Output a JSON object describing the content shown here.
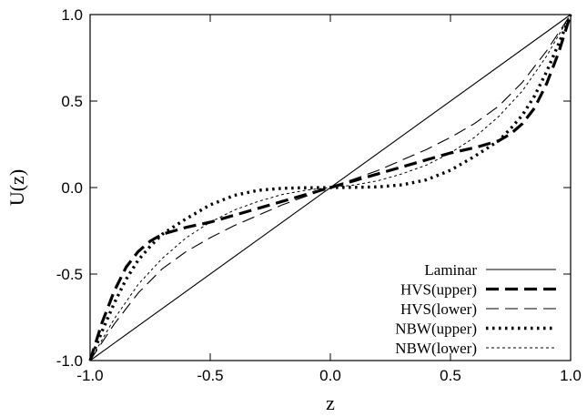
{
  "chart_data": {
    "type": "line",
    "title": "",
    "xlabel": "z",
    "ylabel": "U(z)",
    "xlim": [
      -1.0,
      1.0
    ],
    "ylim": [
      -1.0,
      1.0
    ],
    "x_ticks": [
      "-1.0",
      "-0.5",
      "0.0",
      "0.5",
      "1.0"
    ],
    "y_ticks": [
      "-1.0",
      "-0.5",
      "0.0",
      "0.5",
      "1.0"
    ],
    "grid": false,
    "legend_position": "bottom-right",
    "series": [
      {
        "name": "Laminar",
        "style": "solid-thin",
        "x": [
          -1.0,
          1.0
        ],
        "y": [
          -1.0,
          1.0
        ]
      },
      {
        "name": "HVS(upper)",
        "style": "dashed-thick",
        "x": [
          -1.0,
          -0.95,
          -0.9,
          -0.85,
          -0.8,
          -0.75,
          -0.7,
          -0.65,
          -0.6,
          -0.5,
          -0.4,
          -0.3,
          -0.2,
          -0.1,
          0.0,
          0.1,
          0.2,
          0.3,
          0.4,
          0.5,
          0.6,
          0.65,
          0.7,
          0.75,
          0.8,
          0.85,
          0.9,
          0.95,
          1.0
        ],
        "y": [
          -1.0,
          -0.78,
          -0.6,
          -0.46,
          -0.37,
          -0.31,
          -0.27,
          -0.25,
          -0.23,
          -0.2,
          -0.16,
          -0.12,
          -0.08,
          -0.04,
          0.0,
          0.04,
          0.08,
          0.12,
          0.16,
          0.2,
          0.23,
          0.25,
          0.27,
          0.31,
          0.37,
          0.46,
          0.6,
          0.78,
          1.0
        ]
      },
      {
        "name": "HVS(lower)",
        "style": "dashed-thin",
        "x": [
          -1.0,
          -0.9,
          -0.8,
          -0.7,
          -0.6,
          -0.5,
          -0.4,
          -0.3,
          -0.2,
          -0.1,
          0.0,
          0.1,
          0.2,
          0.3,
          0.4,
          0.5,
          0.6,
          0.7,
          0.8,
          0.9,
          1.0
        ],
        "y": [
          -1.0,
          -0.79,
          -0.61,
          -0.47,
          -0.37,
          -0.29,
          -0.22,
          -0.16,
          -0.1,
          -0.05,
          0.0,
          0.05,
          0.1,
          0.16,
          0.22,
          0.29,
          0.37,
          0.47,
          0.61,
          0.79,
          1.0
        ]
      },
      {
        "name": "NBW(upper)",
        "style": "dotted-thick",
        "x": [
          -1.0,
          -0.95,
          -0.9,
          -0.85,
          -0.8,
          -0.75,
          -0.7,
          -0.6,
          -0.5,
          -0.4,
          -0.3,
          -0.2,
          -0.1,
          0.0,
          0.1,
          0.2,
          0.3,
          0.4,
          0.5,
          0.6,
          0.7,
          0.75,
          0.8,
          0.85,
          0.9,
          0.95,
          1.0
        ],
        "y": [
          -1.0,
          -0.83,
          -0.67,
          -0.53,
          -0.42,
          -0.34,
          -0.27,
          -0.18,
          -0.1,
          -0.045,
          -0.016,
          -0.004,
          -0.001,
          0.0,
          0.001,
          0.004,
          0.016,
          0.045,
          0.1,
          0.18,
          0.27,
          0.34,
          0.42,
          0.53,
          0.67,
          0.83,
          1.0
        ]
      },
      {
        "name": "NBW(lower)",
        "style": "dotted-thin",
        "x": [
          -1.0,
          -0.9,
          -0.8,
          -0.7,
          -0.6,
          -0.5,
          -0.4,
          -0.3,
          -0.2,
          -0.1,
          0.0,
          0.1,
          0.2,
          0.3,
          0.4,
          0.5,
          0.6,
          0.7,
          0.8,
          0.9,
          1.0
        ],
        "y": [
          -1.0,
          -0.76,
          -0.56,
          -0.41,
          -0.29,
          -0.2,
          -0.13,
          -0.08,
          -0.04,
          -0.015,
          0.0,
          0.015,
          0.04,
          0.08,
          0.13,
          0.2,
          0.29,
          0.41,
          0.56,
          0.76,
          1.0
        ]
      }
    ]
  }
}
